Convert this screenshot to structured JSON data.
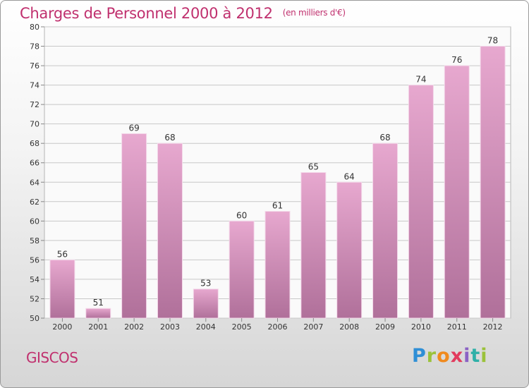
{
  "title": "Charges de Personnel 2000 à 2012",
  "subtitle": "(en milliers d'€)",
  "commune": "GISCOS",
  "logo_text": "Proxiti",
  "colors": {
    "accent": "#c0306e",
    "bar_top": "#e7a8cf",
    "bar_bottom": "#b0709a"
  },
  "chart_data": {
    "type": "bar",
    "title": "Charges de Personnel 2000 à 2012",
    "categories": [
      "2000",
      "2001",
      "2002",
      "2003",
      "2004",
      "2005",
      "2006",
      "2007",
      "2008",
      "2009",
      "2010",
      "2011",
      "2012"
    ],
    "values": [
      56,
      51,
      69,
      68,
      53,
      60,
      61,
      65,
      64,
      68,
      74,
      76,
      78
    ],
    "xlabel": "",
    "ylabel": "",
    "ylim": [
      50,
      80
    ],
    "yticks": [
      50,
      52,
      54,
      56,
      58,
      60,
      62,
      64,
      66,
      68,
      70,
      72,
      74,
      76,
      78,
      80
    ],
    "grid": true,
    "legend": "none"
  }
}
